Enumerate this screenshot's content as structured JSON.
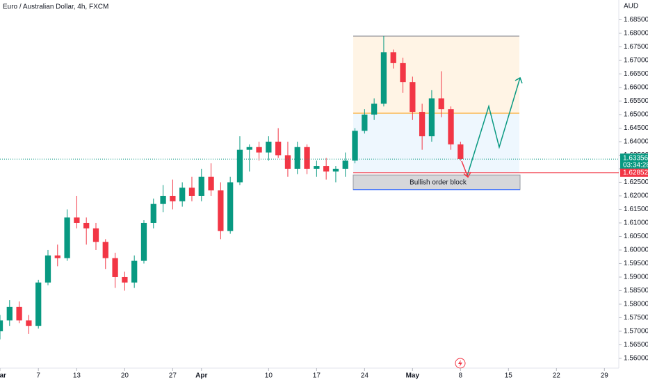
{
  "chart_data": {
    "type": "candlestick",
    "title": "Euro / Australian Dollar, 4h, FXCM",
    "currency": "AUD",
    "x": [
      0,
      1,
      2,
      3,
      4,
      5,
      6,
      7,
      8,
      9,
      10,
      11,
      12,
      13,
      14,
      15,
      16,
      17,
      18,
      19,
      20,
      21,
      22,
      23,
      24,
      25,
      26,
      27,
      28,
      29,
      30,
      31,
      32,
      33,
      34,
      35,
      36,
      37,
      38,
      39,
      40,
      41,
      42,
      43,
      44,
      45,
      46,
      47,
      48
    ],
    "open": [
      1.57,
      1.574,
      1.579,
      1.574,
      1.572,
      1.588,
      1.598,
      1.597,
      1.612,
      1.61,
      1.608,
      1.603,
      1.597,
      1.59,
      1.588,
      1.596,
      1.61,
      1.617,
      1.62,
      1.618,
      1.623,
      1.62,
      1.627,
      1.622,
      1.607,
      1.625,
      1.637,
      1.638,
      1.636,
      1.64,
      1.635,
      1.63,
      1.638,
      1.63,
      1.631,
      1.629,
      1.63,
      1.633,
      1.644,
      1.65,
      1.654,
      1.673,
      1.669,
      1.662,
      1.651,
      1.642,
      1.656,
      1.652,
      1.639
    ],
    "high": [
      1.576,
      1.5815,
      1.581,
      1.576,
      1.589,
      1.6,
      1.602,
      1.615,
      1.62,
      1.612,
      1.61,
      1.604,
      1.599,
      1.592,
      1.598,
      1.611,
      1.619,
      1.624,
      1.626,
      1.625,
      1.627,
      1.63,
      1.632,
      1.625,
      1.627,
      1.642,
      1.639,
      1.64,
      1.642,
      1.645,
      1.64,
      1.64,
      1.639,
      1.633,
      1.634,
      1.631,
      1.636,
      1.645,
      1.652,
      1.656,
      1.679,
      1.674,
      1.671,
      1.664,
      1.654,
      1.659,
      1.666,
      1.653,
      1.64
    ],
    "low": [
      1.567,
      1.572,
      1.573,
      1.569,
      1.571,
      1.587,
      1.594,
      1.596,
      1.608,
      1.602,
      1.6,
      1.593,
      1.586,
      1.585,
      1.586,
      1.595,
      1.608,
      1.614,
      1.615,
      1.616,
      1.618,
      1.618,
      1.62,
      1.604,
      1.606,
      1.624,
      1.629,
      1.633,
      1.633,
      1.634,
      1.627,
      1.628,
      1.628,
      1.627,
      1.626,
      1.625,
      1.627,
      1.632,
      1.643,
      1.648,
      1.653,
      1.667,
      1.658,
      1.648,
      1.637,
      1.64,
      1.649,
      1.637,
      1.633
    ],
    "close": [
      1.574,
      1.579,
      1.574,
      1.572,
      1.588,
      1.598,
      1.597,
      1.612,
      1.61,
      1.608,
      1.603,
      1.597,
      1.59,
      1.588,
      1.596,
      1.61,
      1.617,
      1.62,
      1.618,
      1.623,
      1.62,
      1.627,
      1.622,
      1.607,
      1.625,
      1.637,
      1.638,
      1.636,
      1.64,
      1.635,
      1.63,
      1.638,
      1.63,
      1.631,
      1.629,
      1.63,
      1.633,
      1.644,
      1.65,
      1.654,
      1.673,
      1.669,
      1.662,
      1.651,
      1.642,
      1.656,
      1.652,
      1.639,
      1.6336
    ],
    "up_color": "#089981",
    "down_color": "#f23645",
    "xlim": [
      0,
      64.5
    ],
    "xticks": [
      {
        "value": 0,
        "label": "Mar"
      },
      {
        "value": 4,
        "label": "7"
      },
      {
        "value": 8,
        "label": "13"
      },
      {
        "value": 13,
        "label": "20"
      },
      {
        "value": 18,
        "label": "27"
      },
      {
        "value": 21,
        "label": "Apr"
      },
      {
        "value": 28,
        "label": "10"
      },
      {
        "value": 33,
        "label": "17"
      },
      {
        "value": 38,
        "label": "24"
      },
      {
        "value": 43,
        "label": "May"
      },
      {
        "value": 48,
        "label": "8"
      },
      {
        "value": 53,
        "label": "15"
      },
      {
        "value": 58,
        "label": "22"
      },
      {
        "value": 63,
        "label": "29"
      }
    ],
    "ylim": [
      1.5564,
      1.6923
    ],
    "yticks": [
      {
        "value": 1.56,
        "label": "1.56000"
      },
      {
        "value": 1.565,
        "label": "1.56500"
      },
      {
        "value": 1.57,
        "label": "1.57000"
      },
      {
        "value": 1.575,
        "label": "1.57500"
      },
      {
        "value": 1.58,
        "label": "1.58000"
      },
      {
        "value": 1.585,
        "label": "1.58500"
      },
      {
        "value": 1.59,
        "label": "1.59000"
      },
      {
        "value": 1.595,
        "label": "1.59500"
      },
      {
        "value": 1.6,
        "label": "1.60000"
      },
      {
        "value": 1.605,
        "label": "1.60500"
      },
      {
        "value": 1.61,
        "label": "1.61000"
      },
      {
        "value": 1.615,
        "label": "1.61500"
      },
      {
        "value": 1.62,
        "label": "1.62000"
      },
      {
        "value": 1.625,
        "label": "1.62500"
      },
      {
        "value": 1.63,
        "label": "1.63000"
      },
      {
        "value": 1.635,
        "label": "1.63500"
      },
      {
        "value": 1.64,
        "label": "1.64000"
      },
      {
        "value": 1.645,
        "label": "1.64500"
      },
      {
        "value": 1.65,
        "label": "1.65000"
      },
      {
        "value": 1.655,
        "label": "1.65500"
      },
      {
        "value": 1.66,
        "label": "1.66000"
      },
      {
        "value": 1.665,
        "label": "1.66500"
      },
      {
        "value": 1.67,
        "label": "1.67000"
      },
      {
        "value": 1.675,
        "label": "1.67500"
      },
      {
        "value": 1.68,
        "label": "1.68000"
      },
      {
        "value": 1.685,
        "label": "1.68500"
      }
    ],
    "last_price": {
      "value": 1.63356,
      "label": "1.63356"
    },
    "countdown": "03:34:28",
    "alert_price": {
      "value": 1.62852,
      "label": "1.62852"
    },
    "annotation": "Bullish order block"
  }
}
